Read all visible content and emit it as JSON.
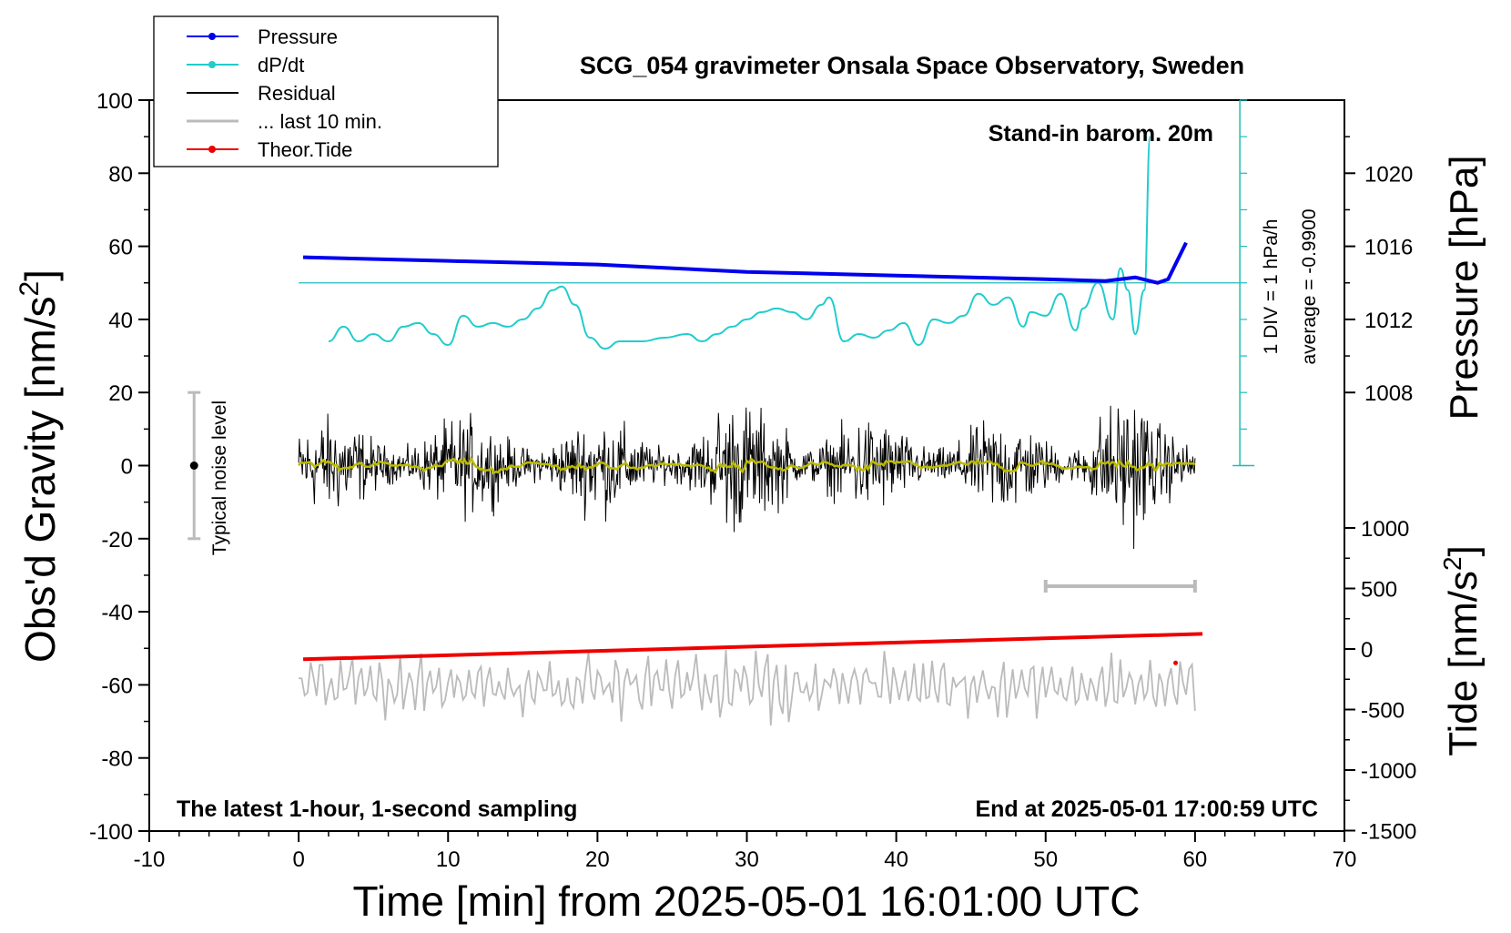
{
  "chart_data": {
    "type": "line",
    "title": "SCG_054 gravimeter Onsala Space Observatory, Sweden",
    "xlabel": "Time [min] from 2025-05-01 16:01:00 UTC",
    "ylabel_left": "Obs'd Gravity [nm/s",
    "ylabel_left_sup": "2",
    "ylabel_left_end": "]",
    "ylabel_right_pressure": "Pressure [hPa]",
    "ylabel_right_tide": "Tide [nm/s",
    "ylabel_right_tide_sup": "2",
    "ylabel_right_tide_end": "]",
    "xlim": [
      -10,
      70
    ],
    "ylim_left": [
      -100,
      100
    ],
    "x_ticks": [
      "-10",
      "0",
      "10",
      "20",
      "30",
      "40",
      "50",
      "60",
      "70"
    ],
    "y_ticks_left": [
      "100",
      "80",
      "60",
      "40",
      "20",
      "0",
      "-20",
      "-40",
      "-60",
      "-80",
      "-100"
    ],
    "pressure_ticks": [
      "1020",
      "1016",
      "1012",
      "1008"
    ],
    "pressure_values": [
      1020,
      1016,
      1012,
      1008
    ],
    "tide_ticks": [
      "1000",
      "500",
      "0",
      "-500",
      "-1000",
      "-1500"
    ],
    "tide_values": [
      1000,
      500,
      0,
      -500,
      -1000,
      -1500
    ],
    "annotations": {
      "stand_in": "Stand-in barom. 20m",
      "div_label": "1 DIV = 1 hPa/h",
      "average_label": "average = -0.9900",
      "noise_label": "Typical noise level",
      "latest": "The latest 1-hour, 1-second sampling",
      "end_at": "End at 2025-05-01 17:00:59 UTC"
    },
    "legend": [
      {
        "label": "Pressure",
        "color": "#0000ee",
        "marker": "dot"
      },
      {
        "label": "dP/dt",
        "color": "#22cccc",
        "marker": "dot"
      },
      {
        "label": "Residual",
        "color": "#000000",
        "marker": "none"
      },
      {
        "label": "... last 10 min.",
        "color": "#bbbbbb",
        "marker": "none"
      },
      {
        "label": "Theor.Tide",
        "color": "#ee0000",
        "marker": "dot"
      }
    ],
    "series": [
      {
        "name": "Pressure",
        "unit": "hPa",
        "x": [
          0.3,
          10,
          20,
          30,
          40,
          50,
          54,
          56,
          57.5,
          58.2,
          59.4
        ],
        "values": [
          1015.4,
          1015.2,
          1015.0,
          1014.6,
          1014.4,
          1014.2,
          1014.1,
          1014.3,
          1014.0,
          1014.2,
          1016.2
        ]
      },
      {
        "name": "dP/dt",
        "unit": "gravity-axis units",
        "x": [
          2,
          3,
          4,
          5,
          6,
          7,
          8,
          9,
          10,
          11,
          12,
          13,
          14,
          15,
          16,
          17,
          17.6,
          18.5,
          19.5,
          20.5,
          21.5,
          23,
          24.5,
          26,
          27,
          28,
          29,
          30,
          31,
          32,
          33,
          34,
          35,
          35.5,
          36.5,
          37.5,
          38.5,
          39.5,
          40.5,
          41.5,
          42.5,
          43.5,
          44.5,
          45.5,
          46.5,
          47.5,
          48.5,
          49,
          50,
          51,
          52,
          52.5,
          53.5,
          54.5,
          55,
          55.5,
          56,
          56.6,
          57
        ],
        "values": [
          34,
          38,
          34,
          36,
          34,
          38,
          39,
          36,
          33,
          41,
          38,
          39,
          38,
          40,
          43,
          48,
          49,
          44,
          35,
          32,
          34,
          34,
          35,
          36,
          34,
          36,
          38,
          40,
          42,
          43,
          42,
          40,
          44,
          46,
          34,
          36,
          35,
          37,
          39,
          33,
          40,
          39,
          41,
          47,
          44,
          46,
          38,
          42,
          41,
          47,
          37,
          43,
          50,
          40,
          54,
          48,
          36,
          48,
          90
        ]
      },
      {
        "name": "Residual",
        "unit": "nm/s2",
        "x_range": [
          0,
          60
        ],
        "approx_amplitude": 14,
        "mean": 0
      },
      {
        "name": "Residual smoothed",
        "unit": "nm/s2",
        "x_range": [
          0,
          60
        ],
        "approx_amplitude": 2,
        "mean": 0
      },
      {
        "name": "... last 10 min.",
        "unit": "nm/s2",
        "x_range": [
          0,
          60
        ],
        "offset": -60,
        "approx_amplitude": 10
      },
      {
        "name": "Theor.Tide",
        "unit": "nm/s2",
        "x": [
          0.3,
          60.5
        ],
        "values": [
          -85,
          125
        ]
      }
    ],
    "noise_bar": {
      "x": -7,
      "center": 0,
      "low": -20,
      "high": 20
    },
    "last10_bar": {
      "x_start": 50,
      "x_end": 60,
      "y": -33
    }
  }
}
